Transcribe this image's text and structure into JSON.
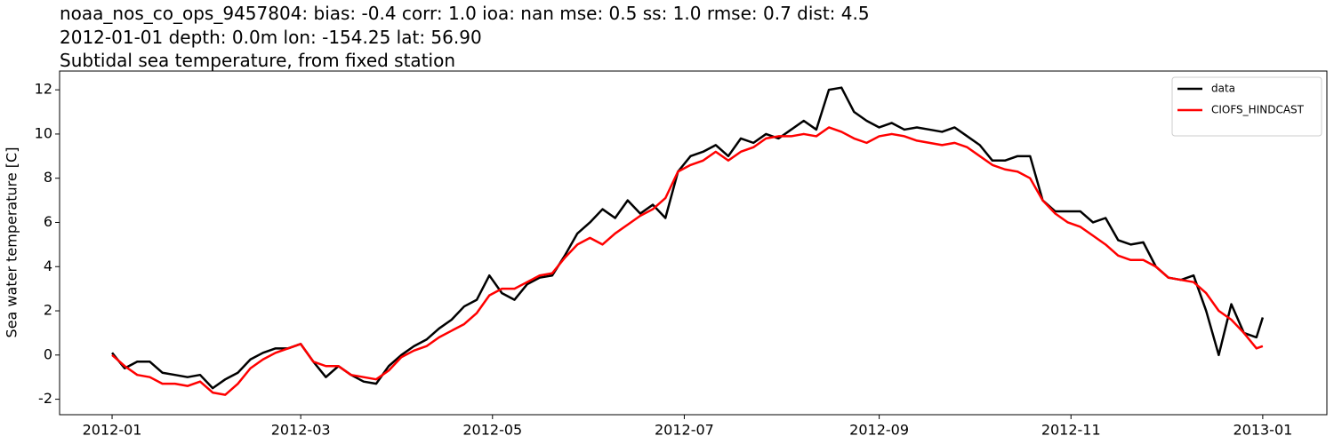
{
  "chart_data": {
    "type": "line",
    "title_lines": [
      "noaa_nos_co_ops_9457804: bias: -0.4  corr: 1.0  ioa: nan  mse: 0.5  ss: 1.0  rmse: 0.7  dist: 4.5",
      "2012-01-01 depth: 0.0m lon: -154.25 lat: 56.90",
      "Subtidal sea temperature, from fixed station"
    ],
    "ylabel": "Sea water temperature [C]",
    "x": [
      0,
      4,
      8,
      12,
      16,
      20,
      24,
      28,
      32,
      36,
      40,
      44,
      48,
      52,
      56,
      60,
      64,
      68,
      72,
      76,
      80,
      84,
      88,
      92,
      96,
      100,
      104,
      108,
      112,
      116,
      120,
      124,
      128,
      132,
      136,
      140,
      144,
      148,
      152,
      156,
      160,
      164,
      168,
      172,
      176,
      180,
      184,
      188,
      192,
      196,
      200,
      204,
      208,
      212,
      216,
      220,
      224,
      228,
      232,
      236,
      240,
      244,
      248,
      252,
      256,
      260,
      264,
      268,
      272,
      276,
      280,
      284,
      288,
      292,
      296,
      300,
      304,
      308,
      312,
      316,
      320,
      324,
      328,
      332,
      336,
      340,
      344,
      348,
      352,
      356,
      360,
      364,
      366
    ],
    "series": [
      {
        "name": "data",
        "color": "#000000",
        "values": [
          0.1,
          -0.6,
          -0.3,
          -0.3,
          -0.8,
          -0.9,
          -1.0,
          -0.9,
          -1.5,
          -1.1,
          -0.8,
          -0.2,
          0.1,
          0.3,
          0.3,
          0.5,
          -0.3,
          -1.0,
          -0.5,
          -0.9,
          -1.2,
          -1.3,
          -0.5,
          0.0,
          0.4,
          0.7,
          1.2,
          1.6,
          2.2,
          2.5,
          3.6,
          2.8,
          2.5,
          3.2,
          3.5,
          3.6,
          4.5,
          5.5,
          6.0,
          6.6,
          6.2,
          7.0,
          6.4,
          6.8,
          6.2,
          8.3,
          9.0,
          9.2,
          9.5,
          9.0,
          9.8,
          9.6,
          10.0,
          9.8,
          10.2,
          10.6,
          10.2,
          12.0,
          12.1,
          11.0,
          10.6,
          10.3,
          10.5,
          10.2,
          10.3,
          10.2,
          10.1,
          10.3,
          9.9,
          9.5,
          8.8,
          8.8,
          9.0,
          9.0,
          7.0,
          6.5,
          6.5,
          6.5,
          6.0,
          6.2,
          5.2,
          5.0,
          5.1,
          4.0,
          3.5,
          3.4,
          3.6,
          2.0,
          0.0,
          2.3,
          1.0,
          0.8,
          1.7
        ]
      },
      {
        "name": "CIOFS_HINDCAST",
        "color": "#ff0000",
        "values": [
          0,
          -0.5,
          -0.9,
          -1.0,
          -1.3,
          -1.3,
          -1.4,
          -1.2,
          -1.7,
          -1.8,
          -1.3,
          -0.6,
          -0.2,
          0.1,
          0.3,
          0.5,
          -0.3,
          -0.5,
          -0.5,
          -0.9,
          -1.0,
          -1.1,
          -0.7,
          -0.1,
          0.2,
          0.4,
          0.8,
          1.1,
          1.4,
          1.9,
          2.7,
          3.0,
          3.0,
          3.3,
          3.6,
          3.7,
          4.4,
          5.0,
          5.3,
          5.0,
          5.5,
          5.9,
          6.3,
          6.6,
          7.1,
          8.3,
          8.6,
          8.8,
          9.2,
          8.8,
          9.2,
          9.4,
          9.8,
          9.9,
          9.9,
          10.0,
          9.9,
          10.3,
          10.1,
          9.8,
          9.6,
          9.9,
          10.0,
          9.9,
          9.7,
          9.6,
          9.5,
          9.6,
          9.4,
          9.0,
          8.6,
          8.4,
          8.3,
          8.0,
          7.0,
          6.4,
          6.0,
          5.8,
          5.4,
          5.0,
          4.5,
          4.3,
          4.3,
          4.0,
          3.5,
          3.4,
          3.3,
          2.8,
          2.0,
          1.6,
          1.0,
          0.3,
          0.4
        ]
      }
    ],
    "xlim": [
      -16.7,
      386.4
    ],
    "xticks": [
      {
        "value": 0,
        "label": "2012-01"
      },
      {
        "value": 60,
        "label": "2012-03"
      },
      {
        "value": 121,
        "label": "2012-05"
      },
      {
        "value": 182,
        "label": "2012-07"
      },
      {
        "value": 244,
        "label": "2012-09"
      },
      {
        "value": 305,
        "label": "2012-11"
      },
      {
        "value": 366,
        "label": "2013-01"
      }
    ],
    "ylim": [
      -2.7,
      12.85
    ],
    "yticks": [
      -2,
      0,
      2,
      4,
      6,
      8,
      10,
      12
    ],
    "grid": false,
    "legend": "upper right"
  }
}
